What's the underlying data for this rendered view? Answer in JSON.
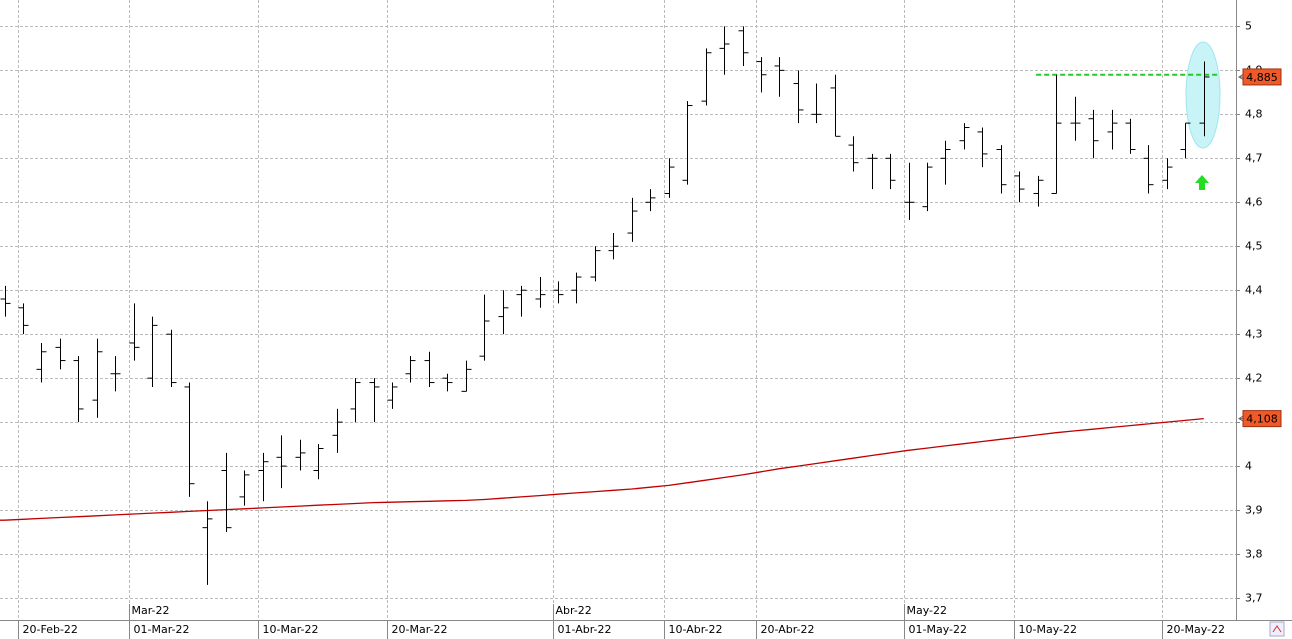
{
  "chart_data": {
    "type": "ohlc",
    "categories": [
      null,
      "20-Feb-22",
      null,
      null,
      null,
      null,
      null,
      "01-Mar-22",
      null,
      null,
      null,
      null,
      null,
      null,
      "10-Mar-22",
      null,
      null,
      null,
      null,
      null,
      null,
      "20-Mar-22",
      null,
      null,
      null,
      null,
      null,
      null,
      null,
      null,
      "01-Abr-22",
      null,
      null,
      null,
      null,
      null,
      "10-Abr-22",
      null,
      null,
      null,
      null,
      "20-Abr-22",
      null,
      null,
      null,
      null,
      null,
      null,
      null,
      "01-May-22",
      null,
      null,
      null,
      null,
      null,
      "10-May-22",
      null,
      null,
      null,
      null,
      null,
      null,
      null,
      "20-May-22",
      null,
      null
    ],
    "months": [
      null,
      null,
      null,
      null,
      null,
      null,
      null,
      "Mar-22",
      null,
      null,
      null,
      null,
      null,
      null,
      null,
      null,
      null,
      null,
      null,
      null,
      null,
      null,
      null,
      null,
      null,
      null,
      null,
      null,
      null,
      null,
      "Abr-22",
      null,
      null,
      null,
      null,
      null,
      null,
      null,
      null,
      null,
      null,
      null,
      null,
      null,
      null,
      null,
      null,
      null,
      null,
      "May-22",
      null,
      null,
      null,
      null,
      null,
      null,
      null,
      null,
      null,
      null,
      null,
      null,
      null,
      null,
      null,
      null
    ],
    "ohlc": {
      "color": "#000000",
      "open": [
        4.38,
        4.36,
        4.22,
        4.27,
        4.24,
        4.15,
        4.21,
        4.28,
        4.2,
        4.3,
        4.18,
        3.86,
        3.99,
        3.93,
        3.99,
        4.02,
        4.02,
        3.99,
        4.07,
        4.13,
        4.19,
        4.15,
        4.21,
        4.24,
        4.2,
        4.17,
        4.25,
        4.34,
        4.39,
        4.38,
        4.4,
        4.4,
        4.43,
        4.49,
        4.53,
        4.6,
        4.62,
        4.65,
        4.83,
        4.95,
        4.99,
        4.92,
        4.91,
        4.87,
        4.8,
        4.86,
        4.73,
        4.7,
        4.7,
        4.6,
        4.59,
        4.7,
        4.74,
        4.76,
        4.72,
        4.66,
        4.62,
        4.62,
        4.78,
        4.79,
        4.76,
        4.78,
        4.7,
        4.65,
        4.72,
        4.78
      ],
      "high": [
        4.41,
        4.37,
        4.28,
        4.29,
        4.25,
        4.29,
        4.25,
        4.37,
        4.34,
        4.31,
        4.19,
        3.92,
        4.03,
        3.99,
        4.03,
        4.07,
        4.06,
        4.05,
        4.13,
        4.2,
        4.2,
        4.19,
        4.25,
        4.26,
        4.21,
        4.24,
        4.39,
        4.4,
        4.41,
        4.43,
        4.42,
        4.44,
        4.5,
        4.53,
        4.61,
        4.63,
        4.7,
        4.83,
        4.95,
        5.0,
        5.0,
        4.93,
        4.93,
        4.9,
        4.87,
        4.89,
        4.75,
        4.71,
        4.71,
        4.69,
        4.69,
        4.74,
        4.78,
        4.77,
        4.73,
        4.67,
        4.66,
        4.89,
        4.84,
        4.81,
        4.81,
        4.79,
        4.73,
        4.7,
        4.78,
        4.92
      ],
      "low": [
        4.34,
        4.3,
        4.19,
        4.22,
        4.1,
        4.11,
        4.17,
        4.24,
        4.18,
        4.18,
        3.93,
        3.73,
        3.85,
        3.91,
        3.92,
        3.95,
        3.99,
        3.97,
        4.03,
        4.1,
        4.1,
        4.13,
        4.19,
        4.18,
        4.17,
        4.17,
        4.24,
        4.3,
        4.34,
        4.36,
        4.37,
        4.37,
        4.42,
        4.47,
        4.51,
        4.58,
        4.61,
        4.64,
        4.82,
        4.89,
        4.91,
        4.85,
        4.84,
        4.78,
        4.78,
        4.75,
        4.67,
        4.63,
        4.63,
        4.56,
        4.58,
        4.64,
        4.72,
        4.68,
        4.62,
        4.6,
        4.59,
        4.62,
        4.74,
        4.7,
        4.72,
        4.71,
        4.62,
        4.63,
        4.7,
        4.75
      ],
      "close": [
        4.37,
        4.32,
        4.26,
        4.24,
        4.13,
        4.26,
        4.21,
        4.27,
        4.32,
        4.19,
        3.96,
        3.88,
        3.86,
        3.98,
        4.01,
        4.0,
        4.03,
        4.04,
        4.1,
        4.19,
        4.18,
        4.18,
        4.24,
        4.19,
        4.19,
        4.22,
        4.33,
        4.36,
        4.4,
        4.39,
        4.39,
        4.43,
        4.49,
        4.5,
        4.58,
        4.61,
        4.68,
        4.82,
        4.94,
        4.96,
        4.94,
        4.89,
        4.9,
        4.81,
        4.8,
        4.75,
        4.69,
        4.7,
        4.65,
        4.6,
        4.68,
        4.72,
        4.77,
        4.71,
        4.64,
        4.63,
        4.65,
        4.78,
        4.78,
        4.74,
        4.78,
        4.72,
        4.64,
        4.68,
        4.78,
        4.885
      ],
      "value_labels": [
        null,
        null,
        null,
        null,
        null,
        null,
        null,
        null,
        null,
        null,
        null,
        null,
        null,
        null,
        null,
        null,
        null,
        null,
        null,
        null,
        null,
        null,
        null,
        null,
        null,
        null,
        null,
        null,
        null,
        null,
        null,
        null,
        null,
        null,
        null,
        null,
        null,
        null,
        null,
        null,
        null,
        null,
        null,
        null,
        null,
        null,
        null,
        null,
        null,
        null,
        null,
        null,
        null,
        null,
        null,
        null,
        null,
        null,
        null,
        null,
        null,
        null,
        null,
        null,
        null,
        "4,885"
      ],
      "label_color": "#f05a28"
    },
    "series": [
      {
        "color": "#c00000",
        "values": [
          3.877,
          3.879,
          3.881,
          3.883,
          3.885,
          3.887,
          3.889,
          3.891,
          3.893,
          3.895,
          3.897,
          3.899,
          3.901,
          3.903,
          3.905,
          3.907,
          3.909,
          3.911,
          3.913,
          3.915,
          3.917,
          3.918,
          3.919,
          3.92,
          3.921,
          3.922,
          3.924,
          3.927,
          3.93,
          3.933,
          3.936,
          3.939,
          3.942,
          3.945,
          3.948,
          3.952,
          3.956,
          3.962,
          3.968,
          3.974,
          3.98,
          3.987,
          3.994,
          4.0,
          4.006,
          4.012,
          4.018,
          4.024,
          4.03,
          4.036,
          4.041,
          4.046,
          4.051,
          4.056,
          4.061,
          4.066,
          4.071,
          4.076,
          4.08,
          4.084,
          4.088,
          4.092,
          4.096,
          4.1,
          4.104,
          4.108
        ],
        "value_labels": [
          null,
          null,
          null,
          null,
          null,
          null,
          null,
          null,
          null,
          null,
          null,
          null,
          null,
          null,
          null,
          null,
          null,
          null,
          null,
          null,
          null,
          null,
          null,
          null,
          null,
          null,
          null,
          null,
          null,
          null,
          null,
          null,
          null,
          null,
          null,
          null,
          null,
          null,
          null,
          null,
          null,
          null,
          null,
          null,
          null,
          null,
          null,
          null,
          null,
          null,
          null,
          null,
          null,
          null,
          null,
          null,
          null,
          null,
          null,
          null,
          null,
          null,
          null,
          null,
          null,
          "4,108"
        ],
        "label_color": "#f05a28"
      }
    ],
    "hline": {
      "value": 4.89,
      "color": "#22cc22",
      "from": 57
    },
    "ylim": [
      3.65,
      5.06
    ],
    "yticks": [
      {
        "value": 3.7,
        "label": "3,7"
      },
      {
        "value": 3.8,
        "label": "3,8"
      },
      {
        "value": 3.9,
        "label": "3,9"
      },
      4,
      {
        "value": 4.1,
        "label": "4,1"
      },
      {
        "value": 4.2,
        "label": "4,2"
      },
      {
        "value": 4.3,
        "label": "4,3"
      },
      {
        "value": 4.4,
        "label": "4,4"
      },
      {
        "value": 4.5,
        "label": "4,5"
      },
      {
        "value": 4.6,
        "label": "4,6"
      },
      {
        "value": 4.7,
        "label": "4,7"
      },
      {
        "value": 4.8,
        "label": "4,8"
      },
      {
        "value": 4.9,
        "label": "4,9"
      },
      5
    ],
    "grid": true
  }
}
